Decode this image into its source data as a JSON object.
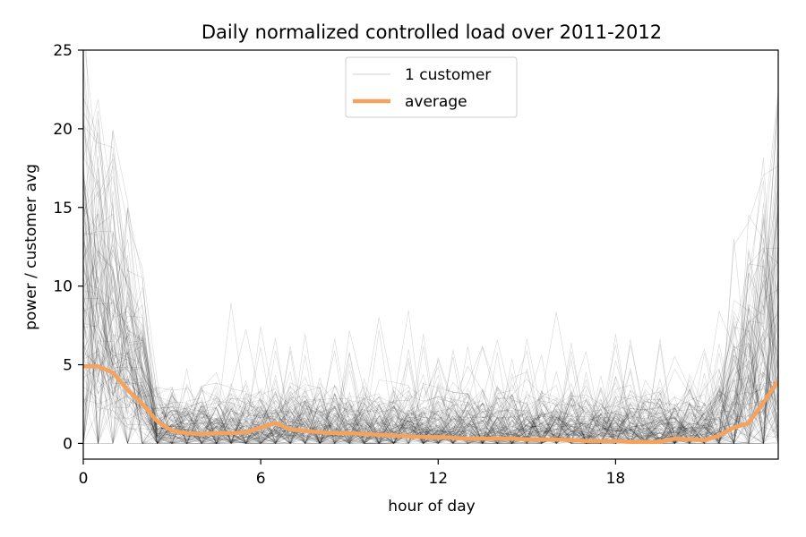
{
  "chart_data": {
    "type": "line",
    "title": "Daily normalized controlled load over 2011-2012",
    "xlabel": "hour of day",
    "ylabel": "power / customer avg",
    "xlim": [
      0,
      23.5
    ],
    "ylim": [
      -1,
      25
    ],
    "xticks": [
      0,
      6,
      12,
      18
    ],
    "yticks": [
      0,
      5,
      10,
      15,
      20,
      25
    ],
    "grid": false,
    "legend_position": "top-center",
    "legend": [
      {
        "label": "1 customer",
        "style": "thin-gray"
      },
      {
        "label": "average",
        "style": "thick-orange"
      }
    ],
    "customer_line_color": "#000000",
    "average_line_color": "#f5a35c",
    "x": [
      0,
      0.5,
      1,
      1.5,
      2,
      2.5,
      3,
      3.5,
      4,
      4.5,
      5,
      5.5,
      6,
      6.5,
      7,
      7.5,
      8,
      8.5,
      9,
      9.5,
      10,
      10.5,
      11,
      11.5,
      12,
      12.5,
      13,
      13.5,
      14,
      14.5,
      15,
      15.5,
      16,
      16.5,
      17,
      17.5,
      18,
      18.5,
      19,
      19.5,
      20,
      20.5,
      21,
      21.5,
      22,
      22.5,
      23,
      23.5
    ],
    "series": [
      {
        "name": "average",
        "values": [
          4.9,
          4.9,
          4.5,
          3.4,
          2.5,
          1.4,
          0.8,
          0.65,
          0.6,
          0.65,
          0.65,
          0.7,
          1.0,
          1.3,
          0.9,
          0.8,
          0.7,
          0.65,
          0.65,
          0.6,
          0.55,
          0.5,
          0.45,
          0.4,
          0.4,
          0.35,
          0.3,
          0.3,
          0.3,
          0.3,
          0.25,
          0.25,
          0.25,
          0.2,
          0.15,
          0.15,
          0.15,
          0.1,
          0.1,
          0.1,
          0.3,
          0.25,
          0.2,
          0.5,
          1.0,
          1.3,
          2.6,
          4.0
        ]
      }
    ]
  }
}
